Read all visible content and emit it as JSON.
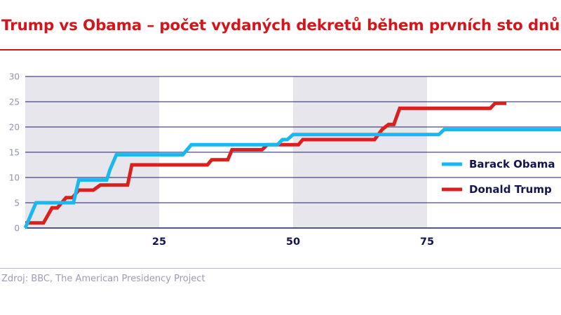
{
  "title": "Trump vs Obama – počet vydaných dekretů během prvních sto dnů",
  "source": "Zdroj: BBC, The American Presidency Project",
  "colors": {
    "title": "#d4161c",
    "obama": "#1ab8f0",
    "trump": "#d9201e",
    "gridline": "#1c1f5e",
    "band": "#e6e6ec",
    "axis_text": "#8f93ad",
    "x_text": "#14144f"
  },
  "legend": {
    "obama_label": "Barack Obama",
    "trump_label": "Donald Trump"
  },
  "axes": {
    "y_ticks": [
      "0",
      "5",
      "10",
      "15",
      "20",
      "25",
      "30"
    ],
    "x_ticks": [
      "25",
      "50",
      "75"
    ]
  },
  "chart_data": {
    "type": "line",
    "title": "Trump vs Obama – počet vydaných dekretů během prvních sto dnů",
    "xlabel": "",
    "ylabel": "",
    "xlim": [
      0,
      100
    ],
    "ylim": [
      0,
      30
    ],
    "x_ticks": [
      25,
      50,
      75
    ],
    "y_ticks": [
      0,
      5,
      10,
      15,
      20,
      25,
      30
    ],
    "grid": "horizontal",
    "shaded_bands": [
      [
        0,
        25
      ],
      [
        50,
        75
      ]
    ],
    "legend_position": "right",
    "series": [
      {
        "name": "Barack Obama",
        "color": "#1ab8f0",
        "points": [
          [
            0,
            0
          ],
          [
            2,
            5
          ],
          [
            9,
            5
          ],
          [
            10,
            9.5
          ],
          [
            15.2,
            9.5
          ],
          [
            15.8,
            11.5
          ],
          [
            17,
            14.5
          ],
          [
            29.4,
            14.5
          ],
          [
            31,
            16.5
          ],
          [
            47.1,
            16.5
          ],
          [
            48,
            17.5
          ],
          [
            48.9,
            17.5
          ],
          [
            50,
            18.5
          ],
          [
            77.2,
            18.5
          ],
          [
            78.2,
            19.5
          ],
          [
            100,
            19.5
          ]
        ]
      },
      {
        "name": "Donald Trump",
        "color": "#d9201e",
        "points": [
          [
            0,
            1
          ],
          [
            3.4,
            1
          ],
          [
            5,
            4
          ],
          [
            6,
            4
          ],
          [
            7.6,
            6
          ],
          [
            8.8,
            6
          ],
          [
            10,
            7.5
          ],
          [
            12.7,
            7.5
          ],
          [
            14,
            8.5
          ],
          [
            19.1,
            8.5
          ],
          [
            19.9,
            12.5
          ],
          [
            34,
            12.5
          ],
          [
            34.8,
            13.5
          ],
          [
            37.8,
            13.5
          ],
          [
            38.6,
            15.5
          ],
          [
            44.2,
            15.5
          ],
          [
            45.2,
            16.5
          ],
          [
            51,
            16.5
          ],
          [
            51.8,
            17.5
          ],
          [
            65.2,
            17.5
          ],
          [
            66.6,
            19.5
          ],
          [
            67.8,
            20.5
          ],
          [
            68.8,
            20.5
          ],
          [
            69.9,
            23.7
          ],
          [
            86.8,
            23.7
          ],
          [
            87.7,
            24.7
          ],
          [
            89.8,
            24.7
          ]
        ]
      }
    ]
  }
}
